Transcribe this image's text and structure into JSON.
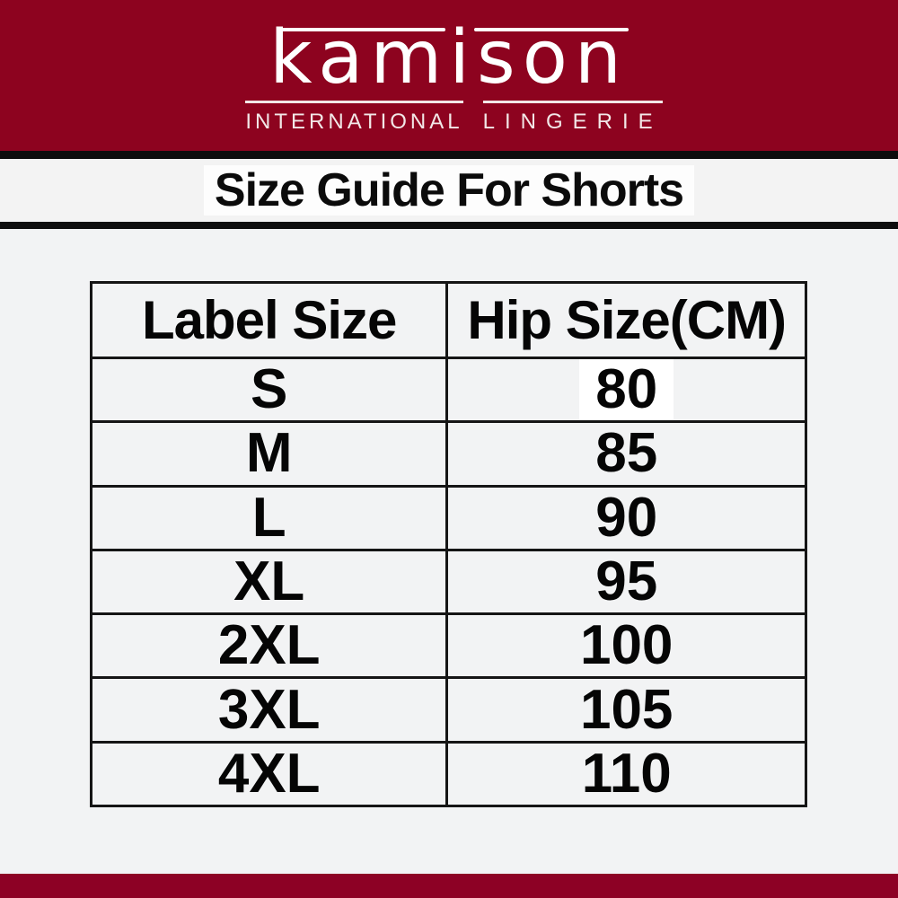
{
  "brand": {
    "wordmark": "kamison",
    "tagline_left": "INTERNATIONAL",
    "tagline_right": "LINGERIE"
  },
  "title": "Size Guide For Shorts",
  "size_table": {
    "columns": [
      "Label Size",
      "Hip Size(CM)"
    ],
    "rows": [
      {
        "label_size": "S",
        "hip_size_cm": "80"
      },
      {
        "label_size": "M",
        "hip_size_cm": "85"
      },
      {
        "label_size": "L",
        "hip_size_cm": "90"
      },
      {
        "label_size": "XL",
        "hip_size_cm": "95"
      },
      {
        "label_size": "2XL",
        "hip_size_cm": "100"
      },
      {
        "label_size": "3XL",
        "hip_size_cm": "105"
      },
      {
        "label_size": "4XL",
        "hip_size_cm": "110"
      }
    ]
  },
  "colors": {
    "banner_maroon": "#8D031F",
    "footer_maroon": "#8D0125",
    "divider_black": "#0D0D0D",
    "page_background": "#F2F3F4",
    "table_border": "#151515",
    "text": "#0B0B0B"
  }
}
